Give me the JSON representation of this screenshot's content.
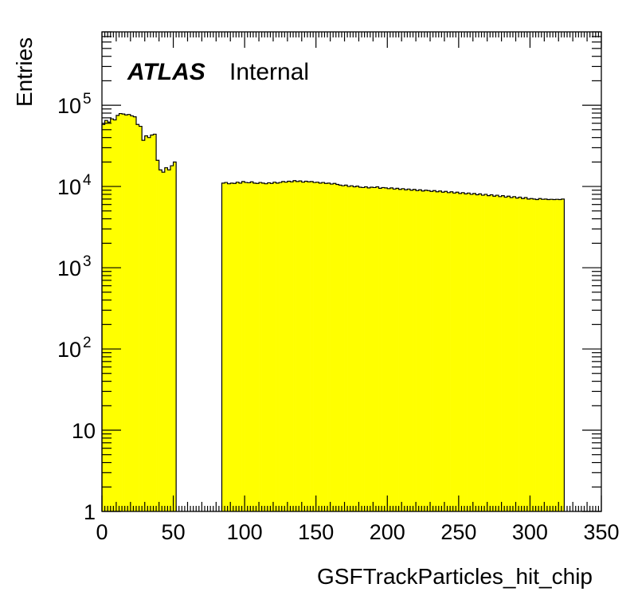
{
  "chart_data": {
    "type": "bar",
    "subtype": "histogram",
    "xlabel": "GSFTrackParticles_hit_chip",
    "ylabel": "Entries",
    "xlim": [
      0,
      350
    ],
    "ylim": [
      1,
      800000
    ],
    "yscale": "log",
    "bin_width": 2,
    "fill_color": "#ffff00",
    "line_color": "#000000",
    "annotation": {
      "atlas": "ATLAS",
      "label": "Internal"
    },
    "x_ticks": [
      "0",
      "50",
      "100",
      "150",
      "200",
      "250",
      "300",
      "350"
    ],
    "y_ticks": [
      {
        "value": 1,
        "base": "1",
        "exp": ""
      },
      {
        "value": 10,
        "base": "10",
        "exp": ""
      },
      {
        "value": 100,
        "base": "10",
        "exp": "2"
      },
      {
        "value": 1000,
        "base": "10",
        "exp": "3"
      },
      {
        "value": 10000,
        "base": "10",
        "exp": "4"
      },
      {
        "value": 100000,
        "base": "10",
        "exp": "5"
      }
    ],
    "segments": [
      {
        "x_start": 0,
        "values": [
          58000,
          65000,
          62000,
          68000,
          66000,
          75000,
          79000,
          78000,
          76000,
          77000,
          74000,
          72000,
          58000,
          55000,
          37000,
          42000,
          40000,
          43000,
          44000,
          21000,
          16000,
          15000,
          17000,
          16000,
          18000,
          20000
        ]
      },
      {
        "x_start": 84,
        "values": [
          11000,
          11200,
          10800,
          11000,
          10900,
          11300,
          11000,
          11500,
          11200,
          11100,
          11400,
          11000,
          10900,
          11200,
          11000,
          10800,
          11100,
          10900,
          11300,
          11000,
          11200,
          11500,
          11300,
          11600,
          11400,
          11800,
          11500,
          11700,
          11300,
          11600,
          11400,
          11500,
          11200,
          11300,
          11000,
          11200,
          10900,
          11000,
          10700,
          10900,
          10600,
          10400,
          10200,
          10400,
          10000,
          10200,
          9900,
          10100,
          9800,
          9700,
          9900,
          9600,
          9800,
          9700,
          9900,
          9500,
          9700,
          9600,
          9400,
          9600,
          9300,
          9500,
          9200,
          9400,
          9100,
          9300,
          9000,
          9200,
          8900,
          9100,
          8800,
          9000,
          8900,
          8700,
          8900,
          8600,
          8800,
          8500,
          8700,
          8400,
          8600,
          8300,
          8500,
          8200,
          8400,
          8100,
          8300,
          8000,
          8200,
          7900,
          8100,
          7800,
          8000,
          7700,
          7900,
          7600,
          7800,
          7500,
          7700,
          7400,
          7600,
          7300,
          7500,
          7200,
          7400,
          7100,
          7300,
          7000,
          7100,
          7000,
          6900,
          7100,
          6950,
          7000,
          6900,
          6950,
          6900,
          6950,
          6900,
          7000
        ]
      }
    ]
  }
}
